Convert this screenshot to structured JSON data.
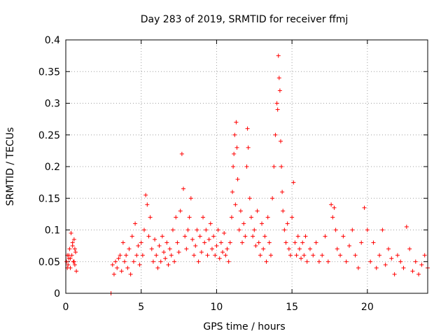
{
  "chart_data": {
    "type": "scatter",
    "title": "Day 283 of 2019, SRMTID for receiver ffmj",
    "xlabel": "GPS time / hours",
    "ylabel": "SRMTID / TECUs",
    "xlim": [
      0,
      24
    ],
    "ylim": [
      0,
      0.4
    ],
    "x_ticks": [
      0,
      5,
      10,
      15,
      20
    ],
    "x_tick_labels": [
      "0",
      "5",
      "10",
      "15",
      "20"
    ],
    "y_ticks": [
      0,
      0.05,
      0.1,
      0.15,
      0.2,
      0.25,
      0.3,
      0.35,
      0.4
    ],
    "y_tick_labels": [
      "0",
      "0.05",
      "0.1",
      "0.15",
      "0.2",
      "0.25",
      "0.3",
      "0.35",
      "0.4"
    ],
    "grid": true,
    "marker": "plus",
    "color": "#ff0000",
    "series": [
      {
        "name": "SRMTID",
        "x": [
          0.05,
          0.1,
          0.15,
          0.2,
          0.25,
          0.3,
          0.35,
          0.4,
          0.45,
          0.5,
          0.55,
          0.6,
          0.65,
          0.7,
          0.1,
          0.2,
          0.3,
          0.45,
          0.55,
          0.6,
          3.0,
          3.1,
          3.2,
          3.3,
          3.4,
          3.5,
          3.6,
          3.7,
          3.8,
          3.9,
          4.0,
          4.1,
          4.2,
          4.3,
          4.4,
          4.5,
          4.6,
          4.7,
          4.8,
          4.9,
          5.0,
          5.1,
          5.2,
          5.3,
          5.4,
          5.5,
          5.6,
          5.7,
          5.8,
          5.9,
          6.0,
          6.1,
          6.2,
          6.3,
          6.4,
          6.5,
          6.6,
          6.7,
          6.8,
          6.9,
          7.0,
          7.1,
          7.2,
          7.3,
          7.4,
          7.5,
          7.6,
          7.7,
          7.8,
          7.9,
          8.0,
          8.1,
          8.2,
          8.3,
          8.4,
          8.5,
          8.6,
          8.7,
          8.8,
          8.9,
          9.0,
          9.1,
          9.2,
          9.3,
          9.4,
          9.5,
          9.6,
          9.7,
          9.8,
          9.9,
          10.0,
          10.1,
          10.2,
          10.3,
          10.4,
          10.5,
          10.6,
          10.7,
          10.8,
          10.9,
          11.0,
          11.05,
          11.1,
          11.15,
          11.2,
          11.25,
          11.3,
          11.35,
          11.4,
          11.5,
          11.6,
          11.7,
          11.8,
          11.9,
          12.0,
          12.05,
          12.1,
          12.2,
          12.3,
          12.4,
          12.5,
          12.6,
          12.7,
          12.8,
          12.9,
          13.0,
          13.1,
          13.2,
          13.3,
          13.4,
          13.5,
          13.6,
          13.7,
          13.8,
          13.9,
          14.0,
          14.05,
          14.1,
          14.15,
          14.2,
          14.25,
          14.3,
          14.35,
          14.4,
          14.5,
          14.6,
          14.7,
          14.8,
          14.9,
          15.0,
          15.1,
          15.2,
          15.3,
          15.4,
          15.5,
          15.6,
          15.7,
          15.8,
          15.9,
          16.0,
          16.2,
          16.4,
          16.6,
          16.8,
          17.0,
          17.2,
          17.4,
          17.6,
          17.7,
          17.8,
          17.9,
          18.0,
          18.2,
          18.4,
          18.6,
          18.8,
          19.0,
          19.2,
          19.4,
          19.6,
          19.8,
          20.0,
          20.2,
          20.4,
          20.6,
          20.8,
          21.0,
          21.2,
          21.4,
          21.6,
          21.8,
          22.0,
          22.2,
          22.4,
          22.6,
          22.8,
          23.0,
          23.2,
          23.4,
          23.6,
          23.8,
          24.0
        ],
        "y": [
          0.05,
          0.06,
          0.045,
          0.055,
          0.07,
          0.04,
          0.095,
          0.06,
          0.075,
          0.05,
          0.085,
          0.045,
          0.065,
          0.035,
          0.04,
          0.06,
          0.055,
          0.08,
          0.05,
          0.07,
          0.0,
          0.045,
          0.03,
          0.05,
          0.04,
          0.055,
          0.06,
          0.035,
          0.08,
          0.05,
          0.06,
          0.04,
          0.07,
          0.03,
          0.09,
          0.05,
          0.11,
          0.06,
          0.075,
          0.045,
          0.08,
          0.06,
          0.1,
          0.155,
          0.14,
          0.09,
          0.12,
          0.07,
          0.05,
          0.085,
          0.06,
          0.04,
          0.075,
          0.05,
          0.09,
          0.065,
          0.055,
          0.08,
          0.045,
          0.07,
          0.06,
          0.1,
          0.05,
          0.12,
          0.08,
          0.065,
          0.13,
          0.22,
          0.165,
          0.09,
          0.07,
          0.1,
          0.12,
          0.15,
          0.085,
          0.06,
          0.075,
          0.1,
          0.05,
          0.09,
          0.065,
          0.12,
          0.08,
          0.1,
          0.06,
          0.085,
          0.11,
          0.07,
          0.09,
          0.06,
          0.075,
          0.1,
          0.055,
          0.08,
          0.065,
          0.095,
          0.06,
          0.07,
          0.05,
          0.08,
          0.12,
          0.16,
          0.2,
          0.22,
          0.25,
          0.14,
          0.27,
          0.23,
          0.18,
          0.1,
          0.13,
          0.08,
          0.11,
          0.09,
          0.2,
          0.26,
          0.23,
          0.15,
          0.12,
          0.09,
          0.1,
          0.075,
          0.13,
          0.08,
          0.06,
          0.11,
          0.07,
          0.09,
          0.05,
          0.12,
          0.08,
          0.06,
          0.15,
          0.2,
          0.25,
          0.3,
          0.29,
          0.375,
          0.34,
          0.32,
          0.24,
          0.2,
          0.16,
          0.13,
          0.1,
          0.08,
          0.11,
          0.07,
          0.06,
          0.12,
          0.175,
          0.08,
          0.06,
          0.09,
          0.07,
          0.055,
          0.08,
          0.06,
          0.09,
          0.05,
          0.07,
          0.06,
          0.08,
          0.05,
          0.06,
          0.09,
          0.05,
          0.14,
          0.12,
          0.135,
          0.1,
          0.07,
          0.06,
          0.09,
          0.05,
          0.075,
          0.1,
          0.06,
          0.04,
          0.08,
          0.135,
          0.1,
          0.05,
          0.08,
          0.04,
          0.06,
          0.1,
          0.045,
          0.07,
          0.055,
          0.03,
          0.06,
          0.05,
          0.04,
          0.105,
          0.07,
          0.035,
          0.05,
          0.03,
          0.045,
          0.06,
          0.04
        ]
      }
    ]
  }
}
